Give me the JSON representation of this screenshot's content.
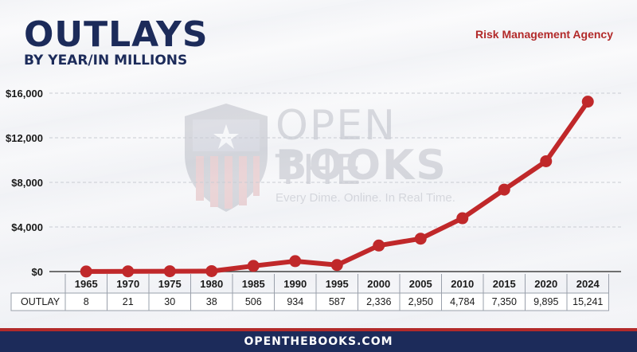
{
  "header": {
    "title": "OUTLAYS",
    "subtitle": "BY YEAR/IN MILLIONS",
    "agency": "Risk Management Agency"
  },
  "watermark": {
    "line1": "OPEN THE",
    "line2": "BOOKS",
    "tagline": "Every Dime. Online. In Real Time."
  },
  "footer": {
    "text": "OPENTHEBOOKS.COM"
  },
  "colors": {
    "navy": "#1c2b5a",
    "line": "#c0282a",
    "accent_red": "#b22a2a"
  },
  "chart_data": {
    "type": "line",
    "title": "OUTLAYS",
    "subtitle": "BY YEAR/IN MILLIONS",
    "categories": [
      "1965",
      "1970",
      "1975",
      "1980",
      "1985",
      "1990",
      "1995",
      "2000",
      "2005",
      "2010",
      "2015",
      "2020",
      "2024"
    ],
    "series": [
      {
        "name": "OUTLAY",
        "values": [
          8,
          21,
          30,
          38,
          506,
          934,
          587,
          2336,
          2950,
          4784,
          7350,
          9895,
          15241
        ]
      }
    ],
    "table_values": [
      "8",
      "21",
      "30",
      "38",
      "506",
      "934",
      "587",
      "2,336",
      "2,950",
      "4,784",
      "7,350",
      "9,895",
      "15,241"
    ],
    "ylim": [
      0,
      16000
    ],
    "y_ticks": [
      0,
      4000,
      8000,
      12000,
      16000
    ],
    "y_tick_labels": [
      "$0",
      "$4,000",
      "$8,000",
      "$12,000",
      "$16,000"
    ],
    "grid": true,
    "legend": "none"
  }
}
